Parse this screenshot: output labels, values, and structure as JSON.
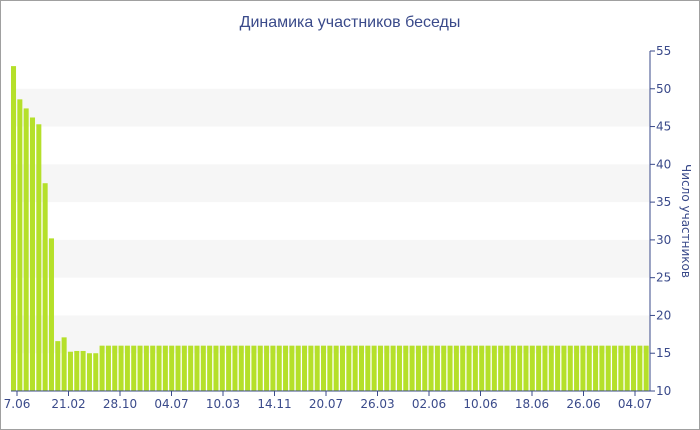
{
  "chart_data": {
    "type": "bar",
    "title": "Динамика участников беседы",
    "ylabel": "Число участников",
    "xlabel": "",
    "ylim": [
      10,
      55
    ],
    "yticks": [
      10,
      15,
      20,
      25,
      30,
      35,
      40,
      45,
      50,
      55
    ],
    "y_axis_position": "right",
    "grid": "alternating horizontal bands",
    "x_tick_labels": [
      "7.06",
      "21.02",
      "28.10",
      "04.07",
      "10.03",
      "14.11",
      "20.07",
      "26.03",
      "02.06",
      "10.06",
      "18.06",
      "26.06",
      "04.07"
    ],
    "values": [
      53,
      48.6,
      47.4,
      46.2,
      45.3,
      37.5,
      30.2,
      16.6,
      17.1,
      15.2,
      15.3,
      15.3,
      15,
      15,
      16,
      16,
      16,
      16,
      16,
      16,
      16,
      16,
      16,
      16,
      16,
      16,
      16,
      16,
      16,
      16,
      16,
      16,
      16,
      16,
      16,
      16,
      16,
      16,
      16,
      16,
      16,
      16,
      16,
      16,
      16,
      16,
      16,
      16,
      16,
      16,
      16,
      16,
      16,
      16,
      16,
      16,
      16,
      16,
      16,
      16,
      16,
      16,
      16,
      16,
      16,
      16,
      16,
      16,
      16,
      16,
      16,
      16,
      16,
      16,
      16,
      16,
      16,
      16,
      16,
      16,
      16,
      16,
      16,
      16,
      16,
      16,
      16,
      16,
      16,
      16,
      16,
      16,
      16,
      16,
      16,
      16,
      16,
      16,
      16,
      16,
      16
    ],
    "colors": {
      "bar": "#b5e02a",
      "band": "#f6f6f6",
      "text": "#3a4a8a",
      "axis": "#3a4a8a"
    }
  }
}
